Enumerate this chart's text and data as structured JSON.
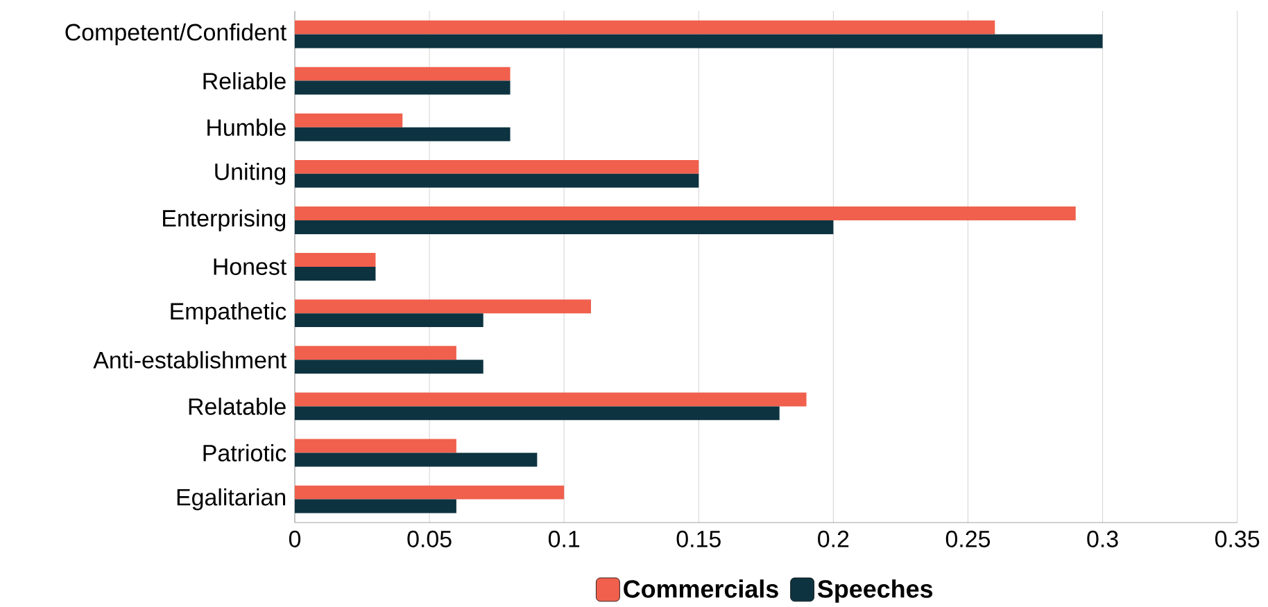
{
  "chart_data": {
    "type": "bar",
    "orientation": "horizontal",
    "categories": [
      "Competent/Confident",
      "Reliable",
      "Humble",
      "Uniting",
      "Enterprising",
      "Honest",
      "Empathetic",
      "Anti-establishment",
      "Relatable",
      "Patriotic",
      "Egalitarian"
    ],
    "series": [
      {
        "name": "Commercials",
        "color": "#f0604d",
        "values": [
          0.26,
          0.08,
          0.04,
          0.15,
          0.29,
          0.03,
          0.11,
          0.06,
          0.19,
          0.06,
          0.1
        ]
      },
      {
        "name": "Speeches",
        "color": "#0d3340",
        "values": [
          0.3,
          0.08,
          0.08,
          0.15,
          0.2,
          0.03,
          0.07,
          0.07,
          0.18,
          0.09,
          0.06
        ]
      }
    ],
    "xlim": [
      0,
      0.35
    ],
    "xticks": [
      0,
      0.05,
      0.1,
      0.15,
      0.2,
      0.25,
      0.3,
      0.35
    ],
    "grid": "x",
    "legend": "bottom"
  }
}
